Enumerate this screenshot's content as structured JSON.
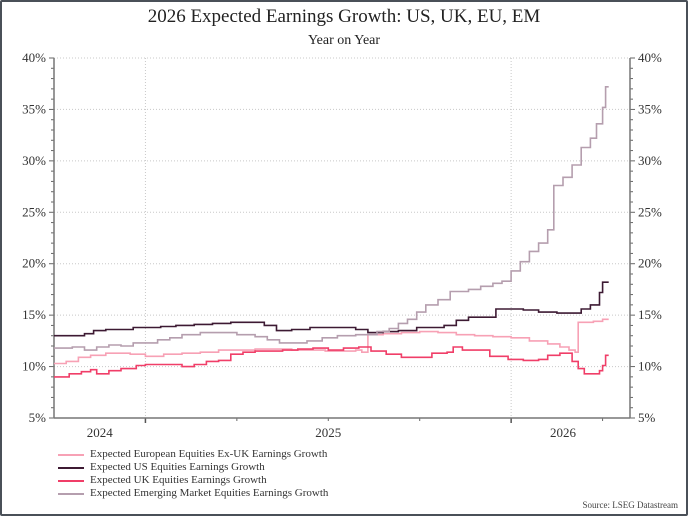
{
  "chart_data": {
    "type": "line",
    "title": "2026 Expected Earnings Growth: US, UK, EU, EM",
    "subtitle": "Year on Year",
    "xlabel": "",
    "ylabel": "",
    "x_units": "months since Jan 2025",
    "xlim": [
      -3.0,
      15.9
    ],
    "ylim": [
      5,
      40
    ],
    "y_ticks": [
      5,
      10,
      15,
      20,
      25,
      30,
      35,
      40
    ],
    "y_tick_labels": [
      "5%",
      "10%",
      "15%",
      "20%",
      "25%",
      "30%",
      "35%",
      "40%"
    ],
    "x_year_labels": [
      {
        "label": "2024",
        "at": -1.5
      },
      {
        "label": "2025",
        "at": 6.0
      },
      {
        "label": "2026",
        "at": 13.7
      }
    ],
    "x_major_ticks": [
      0,
      12
    ],
    "x_minor_ticks": [
      3,
      6,
      9,
      15
    ],
    "grid": true,
    "legend_position": "bottom-left",
    "source": "Source: LSEG Datastream",
    "series": [
      {
        "name": "Expected European Equities Ex-UK Earnings Growth",
        "color": "#f7a1b5",
        "points": [
          [
            -3.0,
            10.3
          ],
          [
            -2.6,
            10.5
          ],
          [
            -2.2,
            10.9
          ],
          [
            -1.8,
            11.1
          ],
          [
            -1.3,
            11.3
          ],
          [
            -0.9,
            11.3
          ],
          [
            -0.5,
            11.2
          ],
          [
            0.0,
            11.0
          ],
          [
            0.6,
            11.2
          ],
          [
            1.2,
            11.3
          ],
          [
            1.8,
            11.4
          ],
          [
            2.4,
            11.6
          ],
          [
            3.0,
            11.6
          ],
          [
            3.6,
            11.7
          ],
          [
            4.2,
            11.7
          ],
          [
            4.8,
            11.6
          ],
          [
            5.4,
            11.6
          ],
          [
            5.9,
            11.5
          ],
          [
            6.4,
            11.5
          ],
          [
            6.9,
            11.6
          ],
          [
            7.1,
            11.4
          ],
          [
            7.3,
            13.1
          ],
          [
            7.8,
            13.2
          ],
          [
            8.4,
            13.3
          ],
          [
            9.0,
            13.4
          ],
          [
            9.6,
            13.3
          ],
          [
            10.2,
            13.1
          ],
          [
            10.8,
            13.0
          ],
          [
            11.4,
            12.9
          ],
          [
            12.0,
            12.8
          ],
          [
            12.6,
            12.5
          ],
          [
            13.2,
            12.2
          ],
          [
            13.6,
            11.9
          ],
          [
            13.9,
            11.6
          ],
          [
            14.1,
            11.4
          ],
          [
            14.2,
            14.3
          ],
          [
            14.7,
            14.4
          ],
          [
            15.0,
            14.6
          ],
          [
            15.2,
            14.6
          ]
        ]
      },
      {
        "name": "Expected US Equities Earnings Growth",
        "color": "#3d1a33",
        "points": [
          [
            -3.0,
            13.0
          ],
          [
            -2.4,
            13.0
          ],
          [
            -2.0,
            13.2
          ],
          [
            -1.7,
            13.5
          ],
          [
            -1.3,
            13.6
          ],
          [
            -0.8,
            13.6
          ],
          [
            -0.4,
            13.8
          ],
          [
            0.0,
            13.8
          ],
          [
            0.5,
            13.9
          ],
          [
            1.0,
            14.0
          ],
          [
            1.6,
            14.1
          ],
          [
            2.2,
            14.2
          ],
          [
            2.8,
            14.3
          ],
          [
            3.4,
            14.3
          ],
          [
            3.9,
            14.0
          ],
          [
            4.3,
            13.5
          ],
          [
            4.8,
            13.6
          ],
          [
            5.4,
            13.8
          ],
          [
            5.9,
            13.8
          ],
          [
            6.4,
            13.8
          ],
          [
            6.9,
            13.6
          ],
          [
            7.3,
            13.3
          ],
          [
            7.8,
            13.4
          ],
          [
            8.3,
            13.5
          ],
          [
            8.9,
            13.8
          ],
          [
            9.4,
            13.8
          ],
          [
            9.8,
            14.0
          ],
          [
            10.2,
            14.5
          ],
          [
            10.6,
            14.8
          ],
          [
            11.1,
            14.8
          ],
          [
            11.5,
            15.6
          ],
          [
            12.0,
            15.6
          ],
          [
            12.4,
            15.5
          ],
          [
            12.9,
            15.3
          ],
          [
            13.5,
            15.2
          ],
          [
            14.0,
            15.2
          ],
          [
            14.3,
            15.6
          ],
          [
            14.6,
            16.0
          ],
          [
            14.9,
            17.2
          ],
          [
            15.0,
            18.2
          ],
          [
            15.2,
            18.2
          ]
        ]
      },
      {
        "name": "Expected UK Equities Earnings Growth",
        "color": "#f03e68",
        "points": [
          [
            -3.0,
            9.0
          ],
          [
            -2.5,
            9.3
          ],
          [
            -2.1,
            9.5
          ],
          [
            -1.8,
            9.7
          ],
          [
            -1.6,
            9.3
          ],
          [
            -1.2,
            9.6
          ],
          [
            -0.8,
            9.8
          ],
          [
            -0.3,
            10.1
          ],
          [
            0.0,
            10.2
          ],
          [
            0.6,
            10.2
          ],
          [
            1.2,
            10.0
          ],
          [
            1.6,
            10.2
          ],
          [
            2.0,
            10.5
          ],
          [
            2.4,
            10.6
          ],
          [
            2.8,
            11.2
          ],
          [
            3.2,
            11.4
          ],
          [
            3.6,
            11.5
          ],
          [
            4.0,
            11.5
          ],
          [
            4.5,
            11.6
          ],
          [
            5.0,
            11.7
          ],
          [
            5.5,
            11.8
          ],
          [
            6.0,
            11.6
          ],
          [
            6.5,
            11.8
          ],
          [
            7.0,
            11.9
          ],
          [
            7.4,
            11.5
          ],
          [
            7.9,
            11.2
          ],
          [
            8.4,
            10.9
          ],
          [
            8.9,
            10.9
          ],
          [
            9.4,
            11.3
          ],
          [
            9.9,
            11.4
          ],
          [
            10.1,
            11.9
          ],
          [
            10.4,
            11.6
          ],
          [
            10.9,
            11.6
          ],
          [
            11.3,
            11.0
          ],
          [
            11.9,
            10.7
          ],
          [
            12.4,
            10.6
          ],
          [
            12.9,
            10.7
          ],
          [
            13.2,
            11.1
          ],
          [
            13.6,
            11.3
          ],
          [
            14.0,
            10.5
          ],
          [
            14.2,
            9.8
          ],
          [
            14.4,
            9.3
          ],
          [
            14.7,
            9.3
          ],
          [
            14.9,
            9.6
          ],
          [
            15.0,
            10.1
          ],
          [
            15.1,
            11.1
          ],
          [
            15.2,
            11.1
          ]
        ]
      },
      {
        "name": "Expected Emerging Market Equities Earnings Growth",
        "color": "#b59eae",
        "points": [
          [
            -3.0,
            11.8
          ],
          [
            -2.4,
            11.9
          ],
          [
            -2.0,
            11.6
          ],
          [
            -1.6,
            11.9
          ],
          [
            -1.2,
            12.1
          ],
          [
            -0.8,
            12.0
          ],
          [
            -0.4,
            12.3
          ],
          [
            0.0,
            12.3
          ],
          [
            0.4,
            12.6
          ],
          [
            0.8,
            12.8
          ],
          [
            1.2,
            13.1
          ],
          [
            1.8,
            13.3
          ],
          [
            2.4,
            13.3
          ],
          [
            3.0,
            13.1
          ],
          [
            3.6,
            12.9
          ],
          [
            4.0,
            12.6
          ],
          [
            4.4,
            12.3
          ],
          [
            4.8,
            12.3
          ],
          [
            5.3,
            12.5
          ],
          [
            5.8,
            12.8
          ],
          [
            6.3,
            13.0
          ],
          [
            6.9,
            13.1
          ],
          [
            7.3,
            13.1
          ],
          [
            7.6,
            13.4
          ],
          [
            8.0,
            13.7
          ],
          [
            8.3,
            14.2
          ],
          [
            8.6,
            14.6
          ],
          [
            8.9,
            15.3
          ],
          [
            9.2,
            16.0
          ],
          [
            9.6,
            16.5
          ],
          [
            10.0,
            17.3
          ],
          [
            10.3,
            17.3
          ],
          [
            10.6,
            17.5
          ],
          [
            11.0,
            17.8
          ],
          [
            11.4,
            18.1
          ],
          [
            11.7,
            18.3
          ],
          [
            12.0,
            19.3
          ],
          [
            12.3,
            20.2
          ],
          [
            12.6,
            21.2
          ],
          [
            12.9,
            22.0
          ],
          [
            13.2,
            23.3
          ],
          [
            13.4,
            27.6
          ],
          [
            13.7,
            28.4
          ],
          [
            14.0,
            29.6
          ],
          [
            14.3,
            31.3
          ],
          [
            14.6,
            32.2
          ],
          [
            14.8,
            33.6
          ],
          [
            15.0,
            35.2
          ],
          [
            15.1,
            37.2
          ],
          [
            15.2,
            37.2
          ]
        ]
      }
    ]
  }
}
